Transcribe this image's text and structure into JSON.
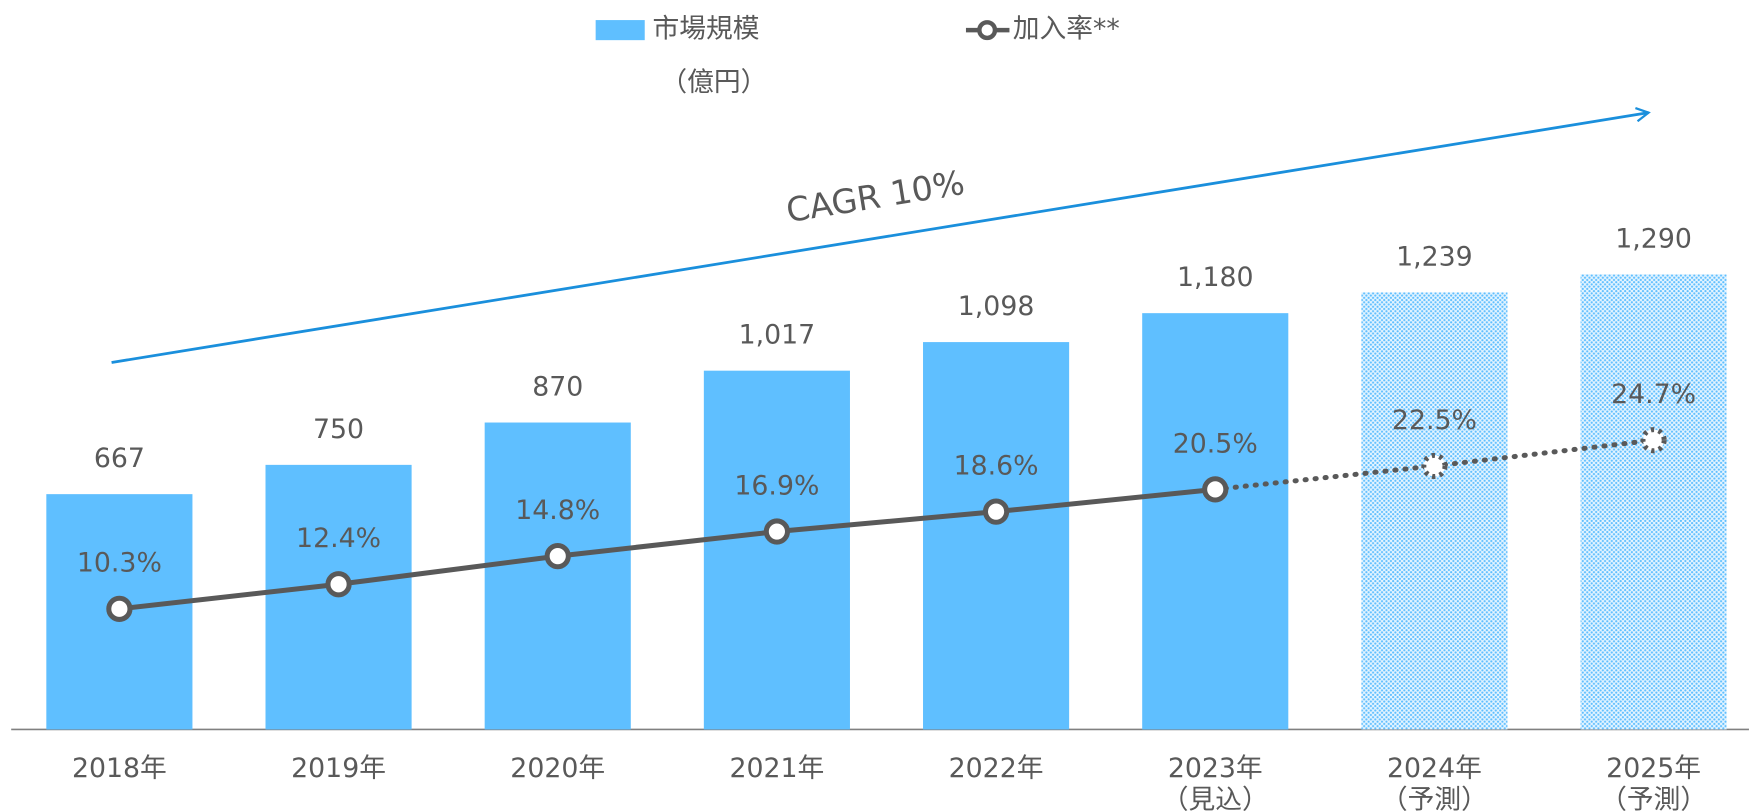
{
  "chart_data": {
    "type": "bar_line",
    "annotation": "CAGR 10%",
    "categories": [
      [
        "2018年"
      ],
      [
        "2019年"
      ],
      [
        "2020年"
      ],
      [
        "2021年"
      ],
      [
        "2022年"
      ],
      [
        "2023年",
        "（見込）"
      ],
      [
        "2024年",
        "（予測）"
      ],
      [
        "2025年",
        "（予測）"
      ]
    ],
    "series": [
      {
        "name": "市場規模",
        "unit": "（億円）",
        "type": "bar",
        "color": "#5fbfff",
        "values": [
          667,
          750,
          870,
          1017,
          1098,
          1180,
          1239,
          1290
        ],
        "value_labels": [
          "667",
          "750",
          "870",
          "1,017",
          "1,098",
          "1,180",
          "1,239",
          "1,290"
        ],
        "styles": [
          "solid",
          "solid",
          "solid",
          "solid",
          "solid",
          "solid",
          "dotted",
          "dotted"
        ]
      },
      {
        "name": "加入率**",
        "type": "line",
        "color": "#595959",
        "values": [
          10.3,
          12.4,
          14.8,
          16.9,
          18.6,
          20.5,
          22.5,
          24.7
        ],
        "value_labels": [
          "10.3%",
          "12.4%",
          "14.8%",
          "16.9%",
          "18.6%",
          "20.5%",
          "22.5%",
          "24.7%"
        ],
        "styles": [
          "solid",
          "solid",
          "solid",
          "solid",
          "solid",
          "solid",
          "dotted",
          "dotted"
        ]
      }
    ]
  }
}
